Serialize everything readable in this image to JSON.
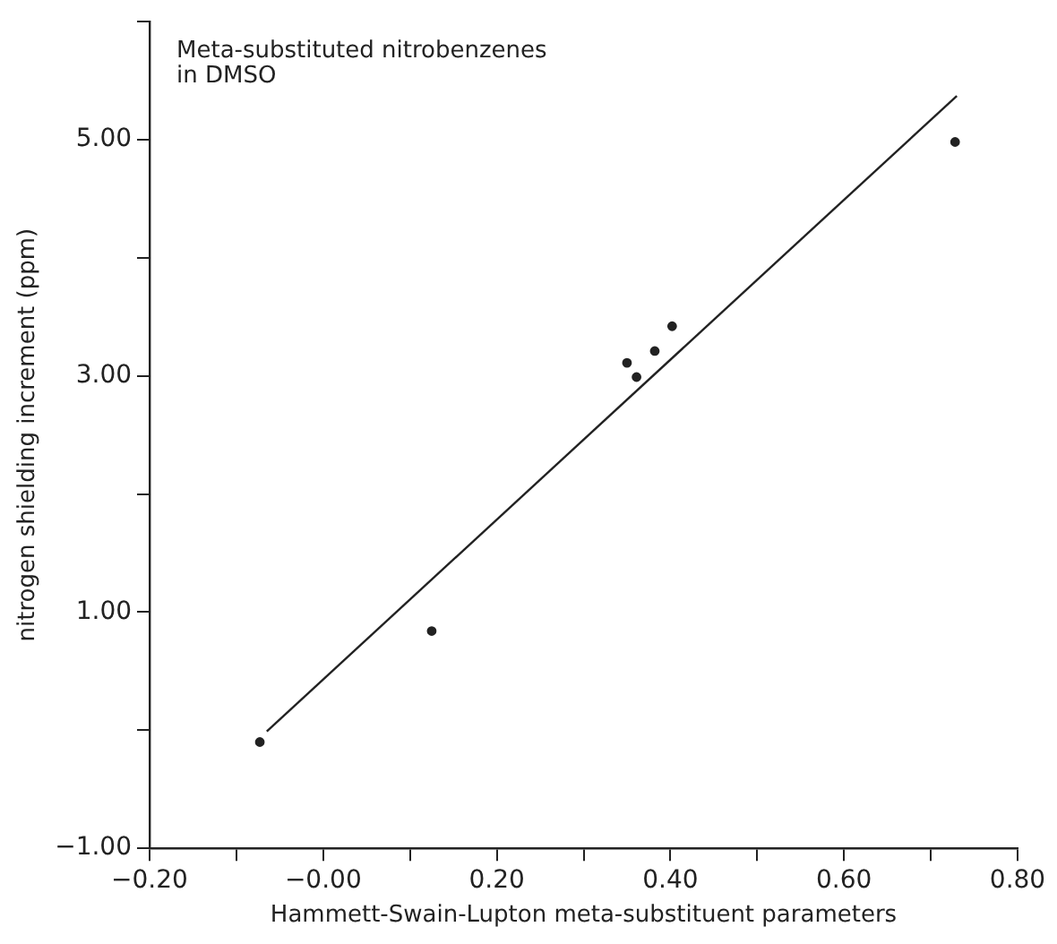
{
  "chart_data": {
    "type": "scatter",
    "title": "Meta-substituted nitrobenzenes\nin DMSO",
    "xlabel": "Hammett-Swain-Lupton meta-substituent parameters",
    "ylabel": "nitrogen shielding increment (ppm)",
    "series": [
      {
        "type": "scatter",
        "color": "#222222",
        "x": [
          -0.073,
          0.125,
          0.35,
          0.361,
          0.382,
          0.402,
          0.728
        ],
        "values": [
          -0.1,
          0.84,
          3.11,
          2.99,
          3.21,
          3.42,
          4.98
        ]
      },
      {
        "type": "line",
        "color": "#222222",
        "marker": "none",
        "x": [
          -0.065,
          0.73
        ],
        "values": [
          -0.01,
          5.37
        ]
      }
    ],
    "xlim": [
      -0.2,
      0.8
    ],
    "xticks": [
      {
        "value": -0.2,
        "label": "−0.20"
      },
      {
        "value": -0.1,
        "label": null
      },
      {
        "value": 0,
        "label": "−0.00"
      },
      {
        "value": 0.1,
        "label": null
      },
      {
        "value": 0.2,
        "label": "0.20"
      },
      {
        "value": 0.3,
        "label": null
      },
      {
        "value": 0.4,
        "label": "0.40"
      },
      {
        "value": 0.5,
        "label": null
      },
      {
        "value": 0.6,
        "label": "0.60"
      },
      {
        "value": 0.7,
        "label": null
      },
      {
        "value": 0.8,
        "label": "0.80"
      }
    ],
    "ylim": [
      -1,
      6
    ],
    "yticks": [
      {
        "value": -1,
        "label": "−1.00"
      },
      {
        "value": 0,
        "label": null
      },
      {
        "value": 1,
        "label": "1.00"
      },
      {
        "value": 2,
        "label": null
      },
      {
        "value": 3,
        "label": "3.00"
      },
      {
        "value": 4,
        "label": null
      },
      {
        "value": 5,
        "label": "5.00"
      },
      {
        "value": 6,
        "label": null
      }
    ],
    "grid": false,
    "legend": false,
    "marker": "circle"
  }
}
